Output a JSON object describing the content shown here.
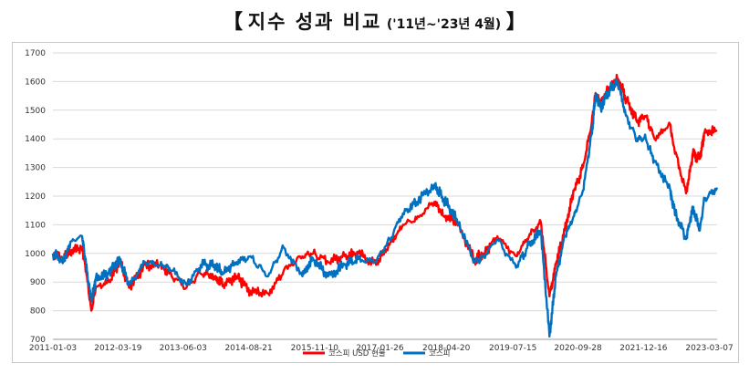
{
  "title": {
    "open_bracket": "【",
    "main": "지수 성과 비교",
    "sub": "('11년~'23년 4월)",
    "close_bracket": "】"
  },
  "chart_data": {
    "type": "line",
    "title": "지수 성과 비교 ('11년~'23년 4월)",
    "xlabel": "",
    "ylabel": "",
    "ylim": [
      700,
      1700
    ],
    "yticks": [
      700,
      800,
      900,
      1000,
      1100,
      1200,
      1300,
      1400,
      1500,
      1600,
      1700
    ],
    "xticks": [
      "2011-01-03",
      "2012-03-19",
      "2013-06-03",
      "2014-08-21",
      "2015-11-10",
      "2017-01-26",
      "2018-04-20",
      "2019-07-15",
      "2020-09-28",
      "2021-12-16",
      "2023-03-07"
    ],
    "xrange": [
      "2011-01-03",
      "2023-04-28"
    ],
    "grid": "horizontal",
    "legend_position": "bottom",
    "series": [
      {
        "name": "코스피 USD 현물",
        "color": "#ff0000",
        "points": [
          [
            "2011-01-03",
            1000
          ],
          [
            "2011-03-15",
            980
          ],
          [
            "2011-05-01",
            1010
          ],
          [
            "2011-07-20",
            1020
          ],
          [
            "2011-08-10",
            960
          ],
          [
            "2011-09-20",
            800
          ],
          [
            "2011-10-20",
            880
          ],
          [
            "2012-01-15",
            900
          ],
          [
            "2012-04-01",
            970
          ],
          [
            "2012-06-01",
            880
          ],
          [
            "2012-09-15",
            960
          ],
          [
            "2012-12-31",
            960
          ],
          [
            "2013-03-01",
            930
          ],
          [
            "2013-06-25",
            880
          ],
          [
            "2013-09-30",
            930
          ],
          [
            "2013-12-31",
            920
          ],
          [
            "2014-03-01",
            890
          ],
          [
            "2014-06-01",
            920
          ],
          [
            "2014-09-01",
            870
          ],
          [
            "2014-12-31",
            860
          ],
          [
            "2015-04-15",
            940
          ],
          [
            "2015-08-20",
            990
          ],
          [
            "2015-11-01",
            1000
          ],
          [
            "2016-02-10",
            970
          ],
          [
            "2016-06-01",
            990
          ],
          [
            "2016-09-01",
            1000
          ],
          [
            "2016-12-31",
            960
          ],
          [
            "2017-04-01",
            1030
          ],
          [
            "2017-07-01",
            1100
          ],
          [
            "2017-10-01",
            1120
          ],
          [
            "2018-01-29",
            1180
          ],
          [
            "2018-04-01",
            1130
          ],
          [
            "2018-06-30",
            1110
          ],
          [
            "2018-10-30",
            980
          ],
          [
            "2018-12-31",
            1000
          ],
          [
            "2019-04-01",
            1060
          ],
          [
            "2019-08-06",
            990
          ],
          [
            "2019-11-01",
            1060
          ],
          [
            "2020-01-20",
            1110
          ],
          [
            "2020-03-19",
            850
          ],
          [
            "2020-05-01",
            960
          ],
          [
            "2020-07-01",
            1080
          ],
          [
            "2020-09-01",
            1220
          ],
          [
            "2020-11-01",
            1300
          ],
          [
            "2020-12-31",
            1460
          ],
          [
            "2021-01-25",
            1560
          ],
          [
            "2021-03-01",
            1530
          ],
          [
            "2021-05-01",
            1580
          ],
          [
            "2021-06-25",
            1610
          ],
          [
            "2021-08-20",
            1540
          ],
          [
            "2021-11-01",
            1460
          ],
          [
            "2021-12-31",
            1480
          ],
          [
            "2022-03-01",
            1400
          ],
          [
            "2022-06-15",
            1450
          ],
          [
            "2022-07-05",
            1380
          ],
          [
            "2022-09-30",
            1210
          ],
          [
            "2022-11-15",
            1350
          ],
          [
            "2023-01-01",
            1330
          ],
          [
            "2023-02-01",
            1420
          ],
          [
            "2023-04-28",
            1430
          ]
        ]
      },
      {
        "name": "코스피",
        "color": "#0070c0",
        "points": [
          [
            "2011-01-03",
            1000
          ],
          [
            "2011-03-15",
            970
          ],
          [
            "2011-05-01",
            1040
          ],
          [
            "2011-07-20",
            1060
          ],
          [
            "2011-08-10",
            980
          ],
          [
            "2011-09-20",
            830
          ],
          [
            "2011-10-20",
            910
          ],
          [
            "2012-01-15",
            930
          ],
          [
            "2012-04-01",
            980
          ],
          [
            "2012-06-01",
            890
          ],
          [
            "2012-09-15",
            970
          ],
          [
            "2012-12-31",
            960
          ],
          [
            "2013-03-01",
            950
          ],
          [
            "2013-06-25",
            890
          ],
          [
            "2013-09-30",
            960
          ],
          [
            "2013-12-31",
            960
          ],
          [
            "2014-03-01",
            930
          ],
          [
            "2014-06-01",
            970
          ],
          [
            "2014-09-01",
            990
          ],
          [
            "2014-12-31",
            920
          ],
          [
            "2015-04-15",
            1020
          ],
          [
            "2015-08-20",
            920
          ],
          [
            "2015-11-01",
            980
          ],
          [
            "2016-02-10",
            920
          ],
          [
            "2016-06-01",
            960
          ],
          [
            "2016-09-01",
            980
          ],
          [
            "2016-12-31",
            970
          ],
          [
            "2017-04-01",
            1050
          ],
          [
            "2017-07-01",
            1140
          ],
          [
            "2017-10-01",
            1180
          ],
          [
            "2018-01-29",
            1240
          ],
          [
            "2018-04-01",
            1190
          ],
          [
            "2018-06-30",
            1120
          ],
          [
            "2018-10-30",
            970
          ],
          [
            "2018-12-31",
            990
          ],
          [
            "2019-04-01",
            1050
          ],
          [
            "2019-08-06",
            950
          ],
          [
            "2019-11-01",
            1030
          ],
          [
            "2020-01-20",
            1080
          ],
          [
            "2020-03-19",
            710
          ],
          [
            "2020-05-01",
            920
          ],
          [
            "2020-07-01",
            1060
          ],
          [
            "2020-09-01",
            1130
          ],
          [
            "2020-11-01",
            1220
          ],
          [
            "2020-12-31",
            1420
          ],
          [
            "2021-01-25",
            1550
          ],
          [
            "2021-03-01",
            1510
          ],
          [
            "2021-05-01",
            1570
          ],
          [
            "2021-06-25",
            1600
          ],
          [
            "2021-08-20",
            1480
          ],
          [
            "2021-11-01",
            1400
          ],
          [
            "2021-12-31",
            1400
          ],
          [
            "2022-03-01",
            1320
          ],
          [
            "2022-06-15",
            1220
          ],
          [
            "2022-07-05",
            1160
          ],
          [
            "2022-09-30",
            1050
          ],
          [
            "2022-11-15",
            1160
          ],
          [
            "2023-01-01",
            1080
          ],
          [
            "2023-02-01",
            1190
          ],
          [
            "2023-04-28",
            1230
          ]
        ]
      }
    ]
  }
}
